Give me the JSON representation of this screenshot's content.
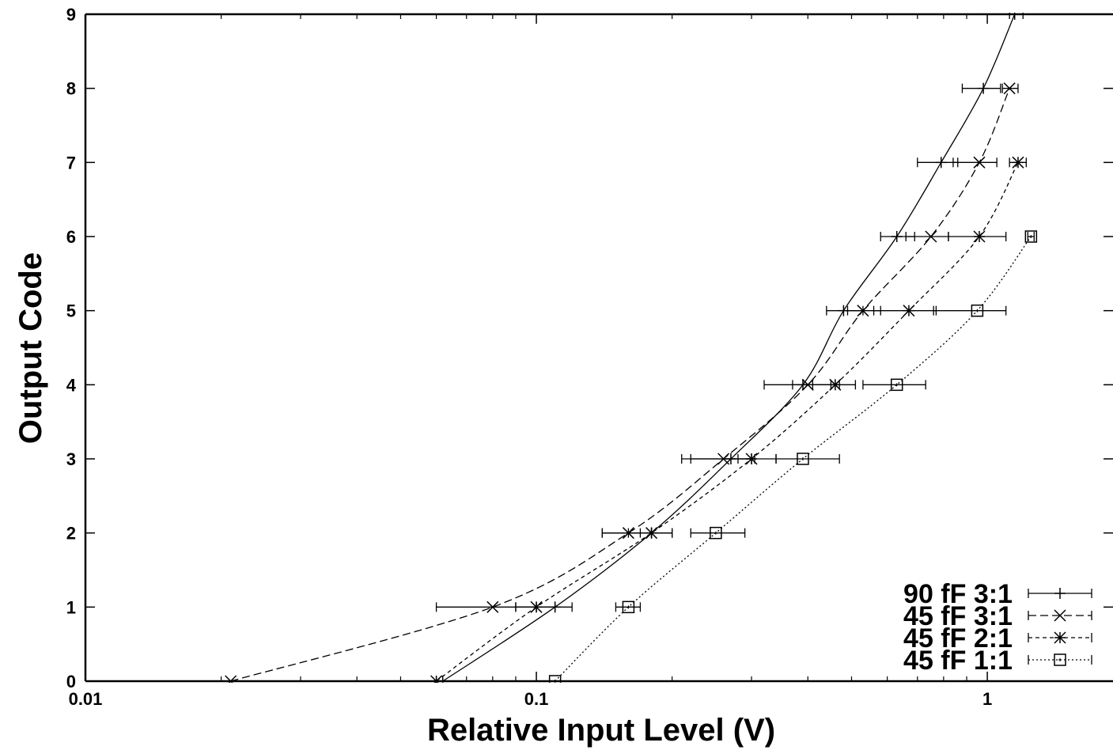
{
  "chart_data": {
    "type": "line",
    "title": "",
    "xlabel": "Relative Input Level (V)",
    "ylabel": "Output Code",
    "x_scale": "log",
    "xlim": [
      0.01,
      1.9
    ],
    "ylim": [
      0,
      9
    ],
    "x_ticks": [
      {
        "value": 0.01,
        "label": "0.01"
      },
      {
        "value": 0.1,
        "label": "0.1"
      },
      {
        "value": 1,
        "label": "1"
      }
    ],
    "y_ticks": [
      {
        "value": 0,
        "label": "0"
      },
      {
        "value": 1,
        "label": "1"
      },
      {
        "value": 2,
        "label": "2"
      },
      {
        "value": 3,
        "label": "3"
      },
      {
        "value": 4,
        "label": "4"
      },
      {
        "value": 5,
        "label": "5"
      },
      {
        "value": 6,
        "label": "6"
      },
      {
        "value": 7,
        "label": "7"
      },
      {
        "value": 8,
        "label": "8"
      },
      {
        "value": 9,
        "label": "9"
      }
    ],
    "grid": false,
    "legend_position": "bottom-right",
    "series": [
      {
        "name": "90 fF 3:1",
        "marker": "plus",
        "dash": "solid",
        "points": [
          {
            "x": 0.062,
            "y": 0
          },
          {
            "x": 0.11,
            "y": 1,
            "xmin": 0.09,
            "xmax": 0.12
          },
          {
            "x": 0.18,
            "y": 2,
            "xmin": 0.16,
            "xmax": 0.2
          },
          {
            "x": 0.27,
            "y": 3,
            "xmin": 0.22,
            "xmax": 0.305
          },
          {
            "x": 0.39,
            "y": 4,
            "xmin": 0.32,
            "xmax": 0.47
          },
          {
            "x": 0.48,
            "y": 5,
            "xmin": 0.44,
            "xmax": 0.53
          },
          {
            "x": 0.63,
            "y": 6,
            "xmin": 0.58,
            "xmax": 0.69
          },
          {
            "x": 0.79,
            "y": 7,
            "xmin": 0.7,
            "xmax": 0.86
          },
          {
            "x": 0.98,
            "y": 8,
            "xmin": 0.88,
            "xmax": 1.07
          },
          {
            "x": 1.15,
            "y": 9,
            "xmin": 1.12,
            "xmax": 1.2
          }
        ]
      },
      {
        "name": "45 fF 3:1",
        "marker": "x",
        "dash": "dashed",
        "points": [
          {
            "x": 0.021,
            "y": 0
          },
          {
            "x": 0.08,
            "y": 1,
            "xmin": 0.06,
            "xmax": 0.1
          },
          {
            "x": 0.16,
            "y": 2,
            "xmin": 0.14,
            "xmax": 0.17
          },
          {
            "x": 0.26,
            "y": 3,
            "xmin": 0.21,
            "xmax": 0.3
          },
          {
            "x": 0.4,
            "y": 4,
            "xmin": 0.37,
            "xmax": 0.45
          },
          {
            "x": 0.53,
            "y": 5,
            "xmin": 0.49,
            "xmax": 0.58
          },
          {
            "x": 0.75,
            "y": 6,
            "xmin": 0.66,
            "xmax": 0.82
          },
          {
            "x": 0.96,
            "y": 7,
            "xmin": 0.84,
            "xmax": 1.05
          },
          {
            "x": 1.12,
            "y": 8,
            "xmin": 1.08,
            "xmax": 1.17
          }
        ]
      },
      {
        "name": "45 fF 2:1",
        "marker": "star",
        "dash": "short-dash",
        "points": [
          {
            "x": 0.06,
            "y": 0
          },
          {
            "x": 0.1,
            "y": 1,
            "xmin": 0.09,
            "xmax": 0.11
          },
          {
            "x": 0.18,
            "y": 2,
            "xmin": 0.14,
            "xmax": 0.2
          },
          {
            "x": 0.3,
            "y": 3,
            "xmin": 0.28,
            "xmax": 0.34
          },
          {
            "x": 0.46,
            "y": 4,
            "xmin": 0.41,
            "xmax": 0.51
          },
          {
            "x": 0.67,
            "y": 5,
            "xmin": 0.56,
            "xmax": 0.77
          },
          {
            "x": 0.96,
            "y": 6,
            "xmin": 0.82,
            "xmax": 1.1
          },
          {
            "x": 1.17,
            "y": 7,
            "xmin": 1.12,
            "xmax": 1.22
          }
        ]
      },
      {
        "name": "45 fF 1:1",
        "marker": "square",
        "dash": "dotted",
        "points": [
          {
            "x": 0.11,
            "y": 0
          },
          {
            "x": 0.16,
            "y": 1,
            "xmin": 0.15,
            "xmax": 0.17
          },
          {
            "x": 0.25,
            "y": 2,
            "xmin": 0.22,
            "xmax": 0.29
          },
          {
            "x": 0.39,
            "y": 3,
            "xmin": 0.34,
            "xmax": 0.47
          },
          {
            "x": 0.63,
            "y": 4,
            "xmin": 0.53,
            "xmax": 0.73
          },
          {
            "x": 0.95,
            "y": 5,
            "xmin": 0.76,
            "xmax": 1.1
          },
          {
            "x": 1.25,
            "y": 6,
            "xmin": 1.23,
            "xmax": 1.27
          }
        ]
      }
    ]
  }
}
